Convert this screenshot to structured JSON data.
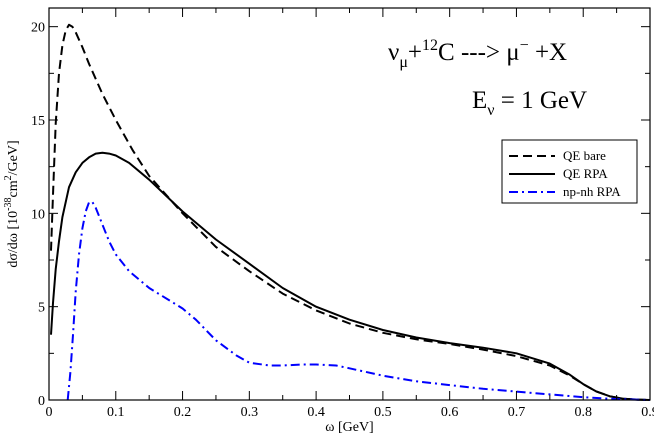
{
  "chart_data": {
    "type": "line",
    "xlabel": "ω [GeV]",
    "ylabel": {
      "prefix": "dσ/dω  [10",
      "exp1": "-38",
      "mid": "cm",
      "exp2": "2",
      "suffix": "/GeV]"
    },
    "xlim": [
      0,
      0.9
    ],
    "ylim": [
      0,
      21
    ],
    "xticks": [
      "0",
      "0.1",
      "0.2",
      "0.3",
      "0.4",
      "0.5",
      "0.6",
      "0.7",
      "0.8",
      "0.9"
    ],
    "yticks": [
      "0",
      "5",
      "10",
      "15",
      "20"
    ],
    "annotation": {
      "reaction": {
        "nu": "ν",
        "nu_sub": "μ",
        "plus": "+",
        "mass": "12",
        "target": "C",
        "arrow": " ---> ",
        "mu": "μ",
        "mu_sup": "−",
        "rest": " +X"
      },
      "energy": {
        "E": "E",
        "E_sub": "ν",
        "rest": " = 1 GeV"
      }
    },
    "legend_position": "top-right",
    "series": [
      {
        "name": "QE bare",
        "style": "dashed",
        "color": "#000000",
        "x": [
          0.003,
          0.006,
          0.01,
          0.015,
          0.02,
          0.025,
          0.03,
          0.035,
          0.04,
          0.05,
          0.06,
          0.08,
          0.1,
          0.125,
          0.15,
          0.2,
          0.25,
          0.3,
          0.35,
          0.4,
          0.45,
          0.5,
          0.55,
          0.6,
          0.65,
          0.7,
          0.75,
          0.78,
          0.8,
          0.82,
          0.84,
          0.86,
          0.88,
          0.9
        ],
        "y": [
          8.0,
          11.0,
          14.8,
          17.5,
          19.0,
          19.8,
          20.1,
          20.0,
          19.7,
          18.9,
          18.0,
          16.4,
          15.0,
          13.4,
          12.0,
          10.0,
          8.2,
          6.9,
          5.7,
          4.8,
          4.1,
          3.6,
          3.25,
          3.0,
          2.7,
          2.35,
          1.85,
          1.3,
          0.85,
          0.45,
          0.2,
          0.07,
          0.02,
          0.0
        ]
      },
      {
        "name": "QE RPA",
        "style": "solid",
        "color": "#000000",
        "x": [
          0.003,
          0.006,
          0.01,
          0.015,
          0.02,
          0.03,
          0.04,
          0.05,
          0.06,
          0.07,
          0.08,
          0.09,
          0.1,
          0.12,
          0.15,
          0.2,
          0.25,
          0.3,
          0.35,
          0.4,
          0.45,
          0.5,
          0.55,
          0.6,
          0.65,
          0.7,
          0.75,
          0.78,
          0.8,
          0.82,
          0.84,
          0.86,
          0.88,
          0.9
        ],
        "y": [
          3.5,
          5.2,
          7.0,
          8.5,
          9.8,
          11.4,
          12.2,
          12.7,
          13.0,
          13.2,
          13.25,
          13.2,
          13.1,
          12.7,
          11.8,
          10.1,
          8.6,
          7.3,
          6.0,
          5.0,
          4.3,
          3.75,
          3.35,
          3.05,
          2.8,
          2.5,
          1.95,
          1.35,
          0.85,
          0.45,
          0.2,
          0.07,
          0.02,
          0.0
        ]
      },
      {
        "name": "np-nh RPA",
        "style": "dashdot",
        "color": "#0000ff",
        "x": [
          0.028,
          0.032,
          0.036,
          0.04,
          0.045,
          0.05,
          0.055,
          0.06,
          0.065,
          0.07,
          0.08,
          0.09,
          0.1,
          0.12,
          0.15,
          0.2,
          0.22,
          0.25,
          0.28,
          0.3,
          0.33,
          0.35,
          0.38,
          0.4,
          0.43,
          0.45,
          0.5,
          0.55,
          0.6,
          0.65,
          0.7,
          0.75,
          0.8,
          0.85,
          0.9
        ],
        "y": [
          0.0,
          1.5,
          3.5,
          5.8,
          7.8,
          9.2,
          10.1,
          10.6,
          10.6,
          10.3,
          9.4,
          8.5,
          7.8,
          6.9,
          6.0,
          4.9,
          4.3,
          3.2,
          2.4,
          2.0,
          1.85,
          1.85,
          1.9,
          1.9,
          1.85,
          1.7,
          1.3,
          1.0,
          0.8,
          0.6,
          0.45,
          0.3,
          0.15,
          0.05,
          0.0
        ]
      }
    ]
  }
}
